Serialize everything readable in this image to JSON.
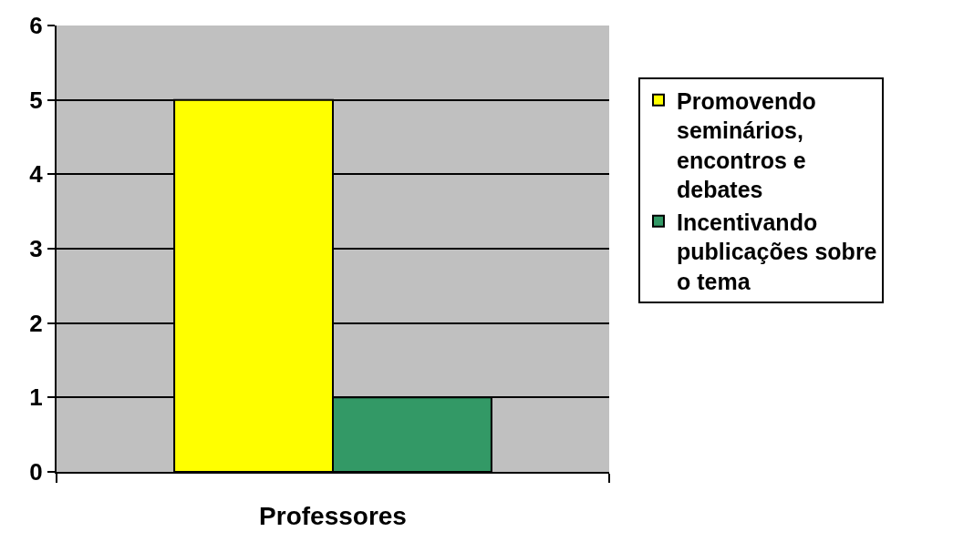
{
  "chart_data": {
    "type": "bar",
    "categories": [
      "Professores"
    ],
    "series": [
      {
        "name": "Promovendo seminários, encontros e debates",
        "color": "#ffff00",
        "values": [
          5
        ]
      },
      {
        "name": "Incentivando publicações sobre o tema",
        "color": "#339966",
        "values": [
          1
        ]
      }
    ],
    "ylim": [
      0,
      6
    ],
    "yticks": [
      0,
      1,
      2,
      3,
      4,
      5,
      6
    ],
    "grid": "y",
    "legend": "right"
  }
}
